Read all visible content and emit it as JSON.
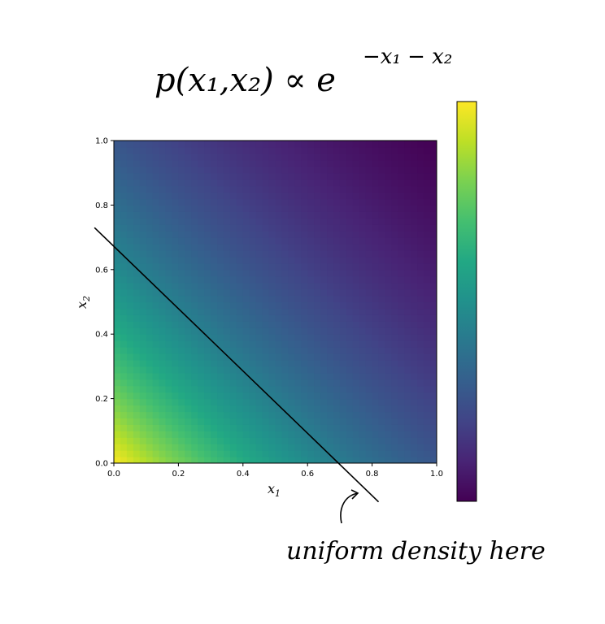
{
  "chart_data": {
    "type": "heatmap",
    "title": "p(x₁,x₂) ∝ e",
    "title_exponent": "−x₁ − x₂",
    "function": "exp(-x1 - x2)",
    "xlabel": "x",
    "xlabel_sub": "1",
    "ylabel": "x",
    "ylabel_sub": "2",
    "xlim": [
      0,
      1
    ],
    "ylim": [
      0,
      1
    ],
    "xticks": [
      "0.0",
      "0.2",
      "0.4",
      "0.6",
      "0.8",
      "1.0"
    ],
    "yticks": [
      "0.0",
      "0.2",
      "0.4",
      "0.6",
      "0.8",
      "1.0"
    ],
    "colormap": "viridis",
    "colorbar": true,
    "colorbar_placement": "right",
    "line": {
      "x": [
        -0.06,
        0.82
      ],
      "y": [
        0.73,
        -0.12
      ]
    },
    "annotation": "uniform density here",
    "grid": false
  },
  "colors": {
    "viridis": [
      "#440154",
      "#482475",
      "#414487",
      "#355f8d",
      "#2a788e",
      "#21918c",
      "#22a884",
      "#44bf70",
      "#7ad151",
      "#bddf26",
      "#fde725"
    ],
    "line": "#000000"
  }
}
